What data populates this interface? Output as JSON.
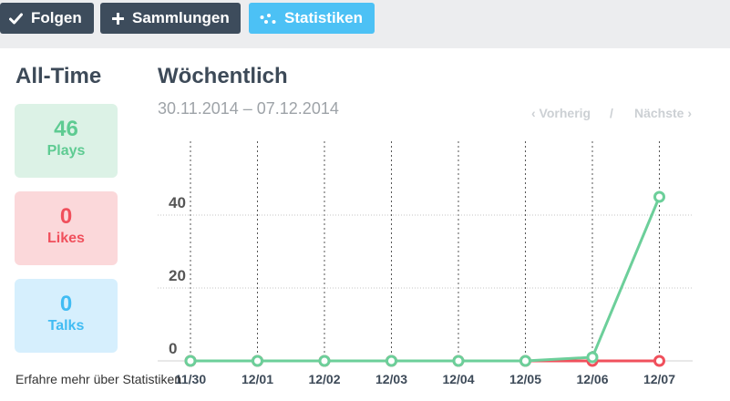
{
  "toolbar": {
    "follow_label": "Folgen",
    "collections_label": "Sammlungen",
    "stats_label": "Statistiken",
    "follow_icon": "check-icon",
    "collections_icon": "plus-icon",
    "stats_icon": "scatter-icon"
  },
  "alltime": {
    "title": "All-Time",
    "plays": {
      "value": "46",
      "label": "Plays"
    },
    "likes": {
      "value": "0",
      "label": "Likes"
    },
    "talks": {
      "value": "0",
      "label": "Talks"
    }
  },
  "weekly": {
    "title": "Wöchentlich",
    "date_range": "30.11.2014 – 07.12.2014",
    "prev_label": "‹ Vorherig",
    "separator": "/",
    "next_label": "Nächste ›"
  },
  "footer": {
    "more_link": "Erfahre mehr über Statistiken"
  },
  "colors": {
    "plays": "#6ccf9a",
    "likes": "#f0505c",
    "talks": "#4cc1f5",
    "dark": "#3d4c5c"
  },
  "chart_data": {
    "type": "line",
    "categories": [
      "11/30",
      "12/01",
      "12/02",
      "12/03",
      "12/04",
      "12/05",
      "12/06",
      "12/07"
    ],
    "y_ticks": [
      "0",
      "20",
      "40"
    ],
    "ylim": [
      0,
      58
    ],
    "grid": true,
    "series": [
      {
        "values": [
          0,
          0,
          0,
          0,
          0,
          0,
          0,
          0
        ],
        "color": "#f0505c"
      },
      {
        "values": [
          0,
          0,
          0,
          0,
          0,
          0,
          1,
          45
        ],
        "color": "#6ccf9a"
      }
    ]
  }
}
